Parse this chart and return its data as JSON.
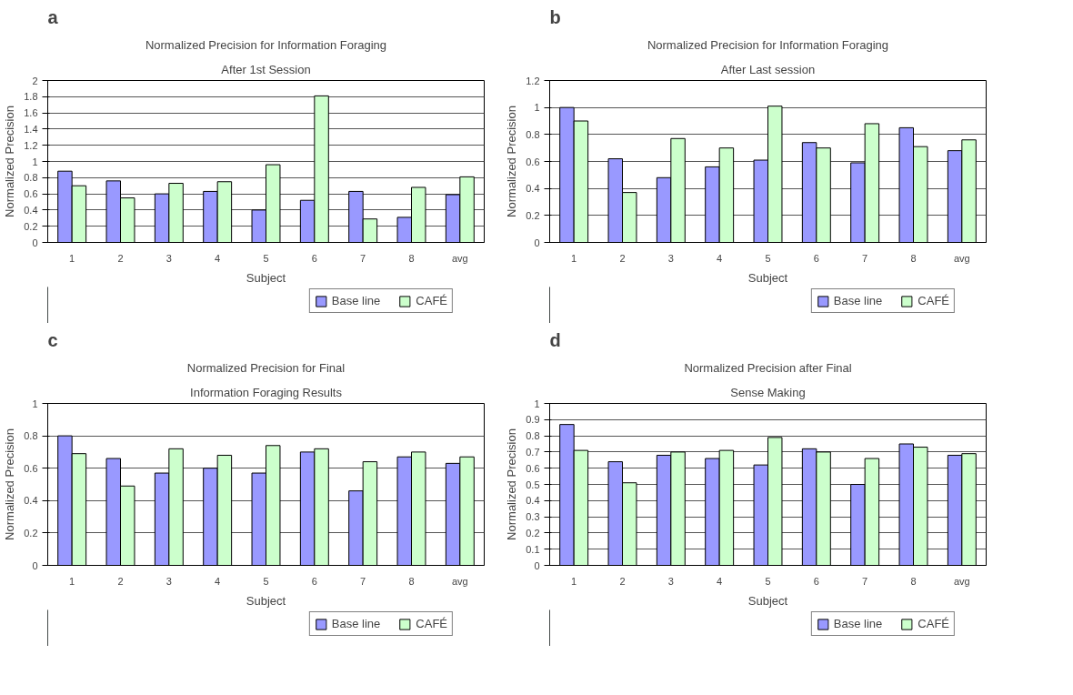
{
  "chart_data": [
    {
      "type": "bar",
      "title": "Normalized Precision for Information Foraging",
      "subtitle": "After 1st Session",
      "xlabel": "Subject",
      "ylabel": "Normalized Precision",
      "annotations": [
        "a"
      ],
      "categories": [
        "1",
        "2",
        "3",
        "4",
        "5",
        "6",
        "7",
        "8",
        "avg"
      ],
      "series": [
        {
          "name": "Base line",
          "color": "#9999ff",
          "values": [
            0.88,
            0.76,
            0.6,
            0.63,
            0.4,
            0.52,
            0.63,
            0.31,
            0.59
          ]
        },
        {
          "name": "CAFÉ",
          "color": "#ccffcc",
          "values": [
            0.7,
            0.55,
            0.73,
            0.75,
            0.96,
            1.81,
            0.29,
            0.68,
            0.81
          ]
        }
      ],
      "ylim": [
        0,
        2
      ],
      "yticks": [
        0,
        0.2,
        0.4,
        0.6,
        0.8,
        1,
        1.2,
        1.4,
        1.6,
        1.8,
        2
      ],
      "grid": "y",
      "legend": "bottom right"
    },
    {
      "type": "bar",
      "title": "Normalized Precision for Information Foraging",
      "subtitle": "After Last session",
      "xlabel": "Subject",
      "ylabel": "Normalized Precision",
      "annotations": [
        "b"
      ],
      "categories": [
        "1",
        "2",
        "3",
        "4",
        "5",
        "6",
        "7",
        "8",
        "avg"
      ],
      "series": [
        {
          "name": "Base line",
          "color": "#9999ff",
          "values": [
            1.0,
            0.62,
            0.48,
            0.56,
            0.61,
            0.74,
            0.59,
            0.85,
            0.68
          ]
        },
        {
          "name": "CAFÉ",
          "color": "#ccffcc",
          "values": [
            0.9,
            0.37,
            0.77,
            0.7,
            1.01,
            0.7,
            0.88,
            0.71,
            0.76
          ]
        }
      ],
      "ylim": [
        0,
        1.2
      ],
      "yticks": [
        0,
        0.2,
        0.4,
        0.6,
        0.8,
        1,
        1.2
      ],
      "grid": "y",
      "legend": "bottom right"
    },
    {
      "type": "bar",
      "title": "Normalized Precision for Final",
      "subtitle": "Information Foraging Results",
      "xlabel": "Subject",
      "ylabel": "Normalized Precision",
      "annotations": [
        "c"
      ],
      "categories": [
        "1",
        "2",
        "3",
        "4",
        "5",
        "6",
        "7",
        "8",
        "avg"
      ],
      "series": [
        {
          "name": "Base line",
          "color": "#9999ff",
          "values": [
            0.8,
            0.66,
            0.57,
            0.6,
            0.57,
            0.7,
            0.46,
            0.67,
            0.63
          ]
        },
        {
          "name": "CAFÉ",
          "color": "#ccffcc",
          "values": [
            0.69,
            0.49,
            0.72,
            0.68,
            0.74,
            0.72,
            0.64,
            0.7,
            0.67
          ]
        }
      ],
      "ylim": [
        0,
        1
      ],
      "yticks": [
        0,
        0.2,
        0.4,
        0.6,
        0.8,
        1
      ],
      "grid": "y",
      "legend": "bottom right"
    },
    {
      "type": "bar",
      "title": "Normalized Precision after Final",
      "subtitle": "Sense Making",
      "xlabel": "Subject",
      "ylabel": "Normalized Precision",
      "annotations": [
        "d"
      ],
      "categories": [
        "1",
        "2",
        "3",
        "4",
        "5",
        "6",
        "7",
        "8",
        "avg"
      ],
      "series": [
        {
          "name": "Base line",
          "color": "#9999ff",
          "values": [
            0.87,
            0.64,
            0.68,
            0.66,
            0.62,
            0.72,
            0.5,
            0.75,
            0.68
          ]
        },
        {
          "name": "CAFÉ",
          "color": "#ccffcc",
          "values": [
            0.71,
            0.51,
            0.7,
            0.71,
            0.79,
            0.7,
            0.66,
            0.73,
            0.69
          ]
        }
      ],
      "ylim": [
        0,
        1
      ],
      "yticks": [
        0,
        0.1,
        0.2,
        0.3,
        0.4,
        0.5,
        0.6,
        0.7,
        0.8,
        0.9,
        1
      ],
      "grid": "y",
      "legend": "bottom right"
    }
  ]
}
